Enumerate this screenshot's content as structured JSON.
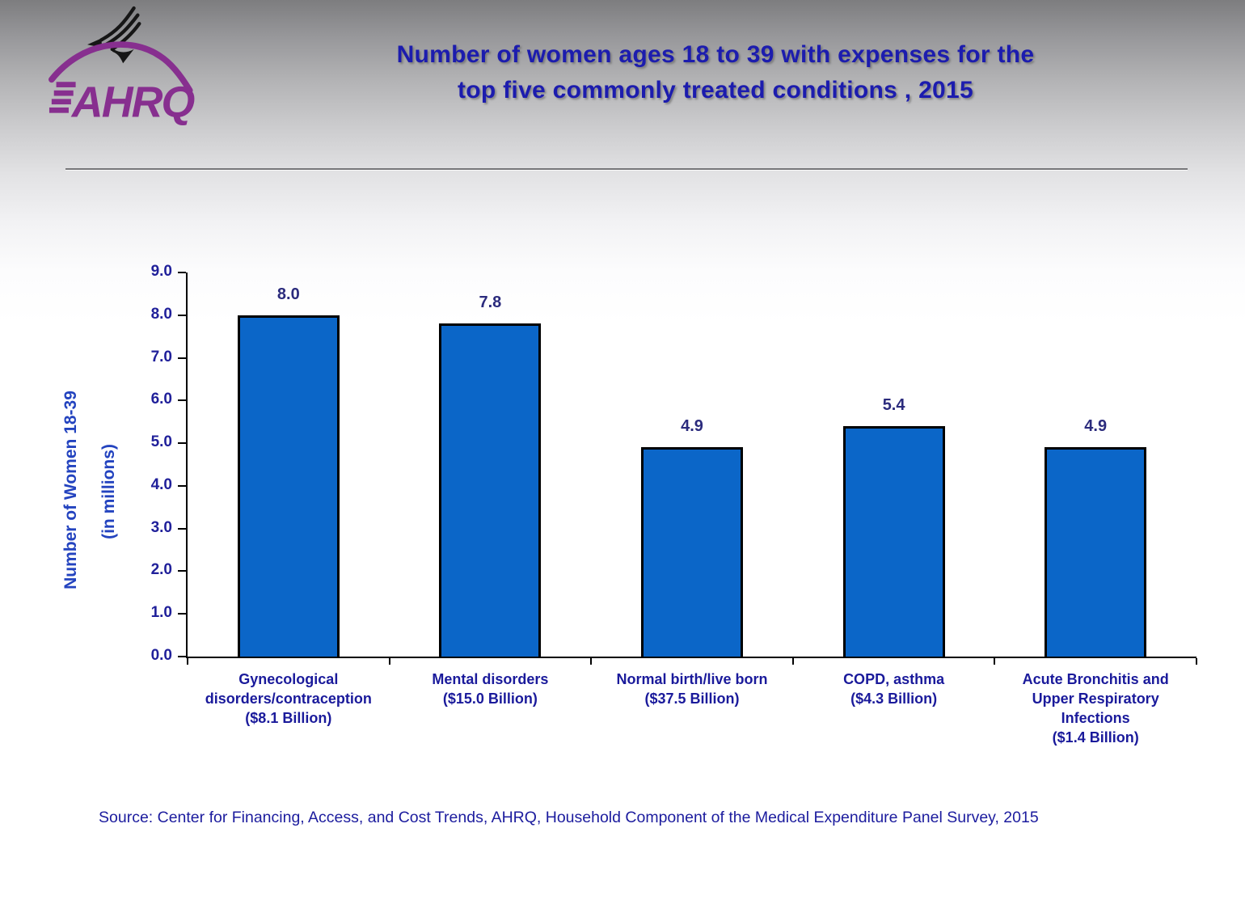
{
  "logo": {
    "text": "AHRQ",
    "purple": "#872F8F"
  },
  "header": {
    "title_line1": "Number of women ages 18 to 39 with expenses for the",
    "title_line2": "top five commonly treated conditions , 2015"
  },
  "chart_data": {
    "type": "bar",
    "title": "Number of women ages 18 to 39 with expenses for the top five commonly treated conditions , 2015",
    "categories": [
      "Gynecological disorders/contraception ($8.1 Billion)",
      "Mental disorders ($15.0 Billion)",
      "Normal birth/live born ($37.5 Billion)",
      "COPD, asthma ($4.3 Billion)",
      "Acute Bronchitis and Upper Respiratory Infections ($1.4 Billion)"
    ],
    "categories_lines": [
      [
        "Gynecological",
        "disorders/contraception",
        "($8.1 Billion)"
      ],
      [
        "Mental disorders",
        "($15.0 Billion)"
      ],
      [
        "Normal birth/live born",
        "($37.5 Billion)"
      ],
      [
        "COPD, asthma",
        "($4.3 Billion)"
      ],
      [
        "Acute Bronchitis and",
        "Upper Respiratory",
        "Infections",
        "($1.4 Billion)"
      ]
    ],
    "values": [
      8.0,
      7.8,
      4.9,
      5.4,
      4.9
    ],
    "value_labels": [
      "8.0",
      "7.8",
      "4.9",
      "5.4",
      "4.9"
    ],
    "xlabel": "",
    "ylabel": "Number of Women 18-39 (in millions)",
    "ylabel_line1": "Number of Women 18-39",
    "ylabel_line2": "(in millions)",
    "ylim": [
      0,
      9
    ],
    "ytick_labels": [
      "0.0",
      "1.0",
      "2.0",
      "3.0",
      "4.0",
      "5.0",
      "6.0",
      "7.0",
      "8.0",
      "9.0"
    ],
    "grid": false,
    "legend_position": "none",
    "bar_color": "#0B66C8",
    "bar_border_color": "#000000"
  },
  "footer": {
    "source": "Source: Center for Financing, Access, and Cost Trends, AHRQ, Household Component of the Medical Expenditure Panel Survey, 2015"
  }
}
